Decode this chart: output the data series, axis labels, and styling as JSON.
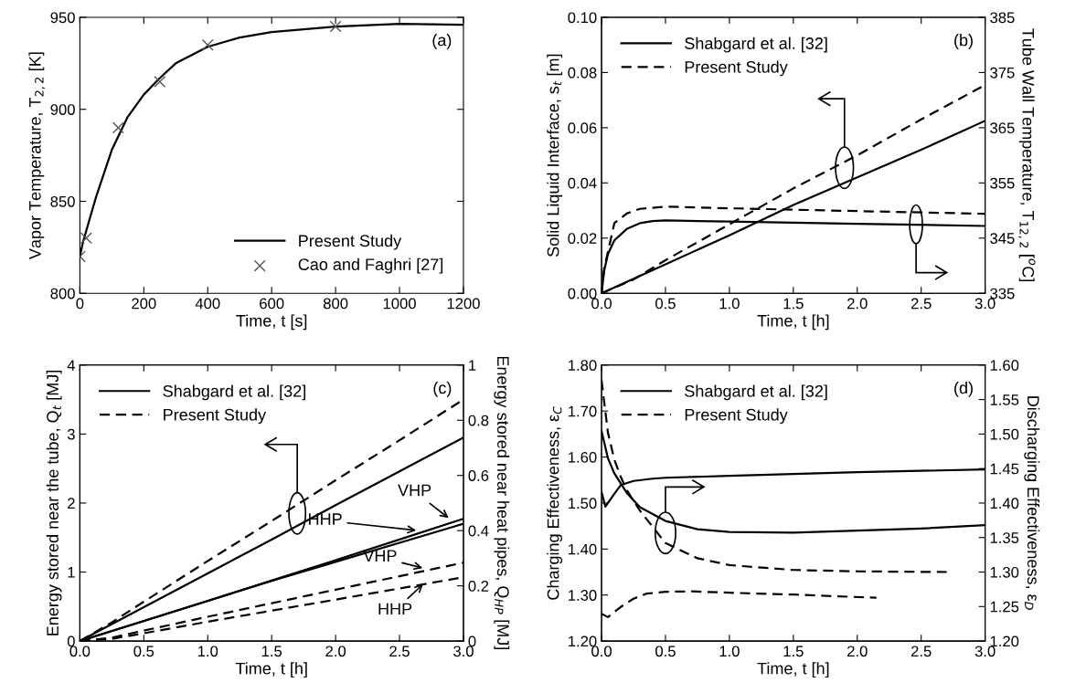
{
  "chart_data": [
    {
      "type": "line",
      "xlabel": "Time, t [s]",
      "ylabel": "Vapor Temperature, T$_{2,2}$ [K]",
      "xlim": [
        0,
        1200
      ],
      "xticks": [
        0,
        200,
        400,
        600,
        800,
        1000,
        1200
      ],
      "ylim": [
        800,
        950
      ],
      "yticks": [
        800,
        850,
        900,
        950
      ],
      "legend": "bottom right",
      "grid": false,
      "annotations": [
        "(a)"
      ],
      "series": [
        {
          "name": "Present Study",
          "color": "#000000",
          "line_style": "solid",
          "marker": "none",
          "x": [
            0,
            10,
            25,
            50,
            100,
            150,
            200,
            250,
            300,
            400,
            500,
            600,
            800,
            1000,
            1200
          ],
          "values": [
            820,
            828,
            837,
            852,
            878,
            896,
            908,
            917,
            925,
            934,
            939,
            942,
            945,
            946.5,
            946
          ]
        },
        {
          "name": "Cao and Faghri [27]",
          "type": "scatter",
          "color": "#555555",
          "marker": "cross",
          "x": [
            0,
            20,
            120,
            250,
            400,
            800
          ],
          "values": [
            820,
            830,
            890,
            915,
            935,
            945
          ]
        }
      ]
    },
    {
      "type": "line",
      "xlabel": "Time, t [h]",
      "ylabel": "Solid Liquid Interface, s$_{t}$ [m]",
      "y2label": "Tube Wall Temperature, T$_{12,2}$ [$^{o}$C]",
      "xlim": [
        0,
        3
      ],
      "xticks": [
        {
          "value": 0,
          "label": "0.0"
        },
        0.5,
        {
          "value": 1,
          "label": "1.0"
        },
        1.5,
        {
          "value": 2,
          "label": "2.0"
        },
        2.5,
        {
          "value": 3,
          "label": "3.0"
        }
      ],
      "ylim": [
        0,
        0.1
      ],
      "yticks": [
        {
          "value": 0,
          "label": "0.00"
        },
        0.02,
        0.04,
        0.06,
        0.08,
        {
          "value": 0.1,
          "label": "0.10"
        }
      ],
      "y2lim": [
        335,
        385
      ],
      "y2ticks": [
        335,
        345,
        355,
        365,
        375,
        385
      ],
      "legend": "top left",
      "grid": false,
      "annotations": [
        "(b)"
      ],
      "series": [
        {
          "name": "Shabgard et al. [32]",
          "color": "#000000",
          "line_style": "solid",
          "x": [
            0,
            0.5,
            1.0,
            1.5,
            2.0,
            2.5,
            3.0
          ],
          "values": [
            0,
            0.0105,
            0.021,
            0.032,
            0.042,
            0.052,
            0.0625
          ]
        },
        {
          "name": "Present Study",
          "color": "#000000",
          "line_style": "dashed",
          "x": [
            0,
            0.25,
            0.5,
            1.0,
            1.5,
            2.0,
            2.5,
            3.0
          ],
          "values": [
            0,
            0.005,
            0.012,
            0.025,
            0.038,
            0.05,
            0.063,
            0.0755
          ]
        },
        {
          "color": "#000000",
          "line_style": "solid",
          "axis": "y2",
          "x": [
            0,
            0.02,
            0.05,
            0.1,
            0.2,
            0.3,
            0.4,
            0.5,
            1.0,
            2.0,
            3.0
          ],
          "values": [
            335,
            339,
            342.1,
            344.6,
            346.7,
            347.7,
            348.1,
            348.2,
            348,
            347.6,
            347.2
          ]
        },
        {
          "color": "#000000",
          "line_style": "dashed",
          "axis": "y2",
          "x": [
            0,
            0.02,
            0.05,
            0.1,
            0.2,
            0.3,
            0.5,
            1.0,
            2.0,
            3.0
          ],
          "values": [
            335,
            339.5,
            342.5,
            347.7,
            349.5,
            350.3,
            350.7,
            350.4,
            349.9,
            349.4
          ]
        }
      ]
    },
    {
      "type": "line",
      "xlabel": "Time, t [h]",
      "ylabel": "Energy stored near the tube, Q$_{t}$ [MJ]",
      "y2label": "Energy stored near heat pipes, Q$_{HP}$ [MJ]",
      "xlim": [
        0,
        3
      ],
      "xticks": [
        {
          "value": 0,
          "label": "0.0"
        },
        0.5,
        {
          "value": 1,
          "label": "1.0"
        },
        1.5,
        {
          "value": 2,
          "label": "2.0"
        },
        2.5,
        {
          "value": 3,
          "label": "3.0"
        }
      ],
      "ylim": [
        0,
        4
      ],
      "yticks": [
        0,
        1,
        2,
        3,
        4
      ],
      "y2lim": [
        0,
        1
      ],
      "y2ticks": [
        0,
        0.2,
        0.4,
        0.6,
        0.8,
        1
      ],
      "legend": "top left",
      "grid": false,
      "annotations": [
        "(c)",
        {
          "text": "VHP",
          "x": 2.9,
          "y": 1.76
        },
        {
          "text": "HHP",
          "x": 2.65,
          "y": 1.6
        },
        {
          "text": "VHP",
          "x": 2.7,
          "y": 1.05
        },
        {
          "text": "HHP",
          "x": 2.7,
          "y": 0.85
        }
      ],
      "series": [
        {
          "name": "Shabgard et al. [32]",
          "color": "#000000",
          "line_style": "solid",
          "x": [
            0,
            0.5,
            1.0,
            1.5,
            2.0,
            2.5,
            3.0
          ],
          "values": [
            0,
            0.49,
            0.98,
            1.47,
            1.97,
            2.46,
            2.95
          ]
        },
        {
          "name": "Present Study",
          "color": "#000000",
          "line_style": "dashed",
          "x": [
            0,
            0.25,
            0.5,
            1.0,
            1.5,
            2.0,
            2.5,
            3.0
          ],
          "values": [
            0,
            0.27,
            0.57,
            1.16,
            1.74,
            2.33,
            2.91,
            3.5
          ]
        },
        {
          "color": "#000000",
          "line_style": "solid",
          "axis": "y2",
          "x": [
            0,
            0.5,
            1.0,
            1.5,
            2.0,
            2.5,
            3.0
          ],
          "values": [
            0,
            0.072,
            0.145,
            0.219,
            0.293,
            0.368,
            0.443
          ]
        },
        {
          "color": "#000000",
          "line_style": "solid",
          "axis": "y2",
          "x": [
            0,
            0.5,
            1.0,
            1.5,
            2.0,
            2.5,
            3.0
          ],
          "values": [
            0,
            0.073,
            0.146,
            0.218,
            0.287,
            0.356,
            0.425
          ]
        },
        {
          "color": "#000000",
          "line_style": "dashed",
          "axis": "y2",
          "x": [
            0,
            0.25,
            0.5,
            1.0,
            2.0,
            3.0
          ],
          "values": [
            0,
            0.012,
            0.038,
            0.088,
            0.186,
            0.284
          ]
        },
        {
          "color": "#000000",
          "line_style": "dashed",
          "axis": "y2",
          "x": [
            0,
            0.25,
            0.5,
            1.0,
            2.0,
            3.0
          ],
          "values": [
            0,
            0.008,
            0.028,
            0.07,
            0.15,
            0.231
          ]
        }
      ]
    },
    {
      "type": "line",
      "xlabel": "Time, t [h]",
      "ylabel": "Charging Effectiveness, ε$_{C}$",
      "y2label": "Discharging Effectiveness, ε$_{D}$",
      "xlim": [
        0,
        3
      ],
      "xticks": [
        {
          "value": 0,
          "label": "0.0"
        },
        0.5,
        {
          "value": 1,
          "label": "1.0"
        },
        1.5,
        {
          "value": 2,
          "label": "2.0"
        },
        2.5,
        {
          "value": 3,
          "label": "3.0"
        }
      ],
      "ylim": [
        1.2,
        1.8
      ],
      "yticks": [
        {
          "value": 1.2,
          "label": "1.20"
        },
        {
          "value": 1.3,
          "label": "1.30"
        },
        {
          "value": 1.4,
          "label": "1.40"
        },
        {
          "value": 1.5,
          "label": "1.50"
        },
        {
          "value": 1.6,
          "label": "1.60"
        },
        {
          "value": 1.7,
          "label": "1.70"
        },
        {
          "value": 1.8,
          "label": "1.80"
        }
      ],
      "y2lim": [
        1.2,
        1.6
      ],
      "y2ticks": [
        {
          "value": 1.2,
          "label": "1.20"
        },
        1.25,
        {
          "value": 1.3,
          "label": "1.30"
        },
        1.35,
        {
          "value": 1.4,
          "label": "1.40"
        },
        1.45,
        {
          "value": 1.5,
          "label": "1.50"
        },
        1.55,
        {
          "value": 1.6,
          "label": "1.60"
        }
      ],
      "legend": "top left",
      "grid": false,
      "annotations": [
        "(d)"
      ],
      "series": [
        {
          "name": "Shabgard et al. [32]",
          "color": "#000000",
          "line_style": "solid",
          "x": [
            0,
            0.03,
            0.1,
            0.15,
            0.25,
            0.4,
            0.5,
            1.0,
            2.0,
            3.0
          ],
          "values": [
            1.524,
            1.492,
            1.52,
            1.539,
            1.548,
            1.553,
            1.555,
            1.559,
            1.567,
            1.573
          ]
        },
        {
          "name": "Present Study",
          "color": "#000000",
          "line_style": "dashed",
          "x": [
            0,
            0.05,
            0.15,
            0.25,
            0.35,
            0.5,
            0.7,
            1.0,
            1.5,
            2.15
          ],
          "values": [
            1.259,
            1.252,
            1.274,
            1.292,
            1.303,
            1.307,
            1.308,
            1.305,
            1.301,
            1.294
          ]
        },
        {
          "color": "#000000",
          "line_style": "solid",
          "axis": "y2",
          "x": [
            0,
            0.05,
            0.1,
            0.2,
            0.3,
            0.5,
            0.75,
            1.0,
            1.5,
            2.0,
            2.5,
            3.0
          ],
          "values": [
            1.504,
            1.465,
            1.443,
            1.414,
            1.394,
            1.374,
            1.362,
            1.358,
            1.357,
            1.36,
            1.363,
            1.368
          ]
        },
        {
          "color": "#000000",
          "line_style": "dashed",
          "axis": "y2",
          "x": [
            0,
            0.05,
            0.1,
            0.15,
            0.2,
            0.3,
            0.5,
            0.75,
            1.0,
            1.5,
            2.0,
            2.7
          ],
          "values": [
            1.578,
            1.502,
            1.463,
            1.438,
            1.418,
            1.389,
            1.342,
            1.32,
            1.31,
            1.303,
            1.301,
            1.3
          ]
        }
      ]
    }
  ]
}
